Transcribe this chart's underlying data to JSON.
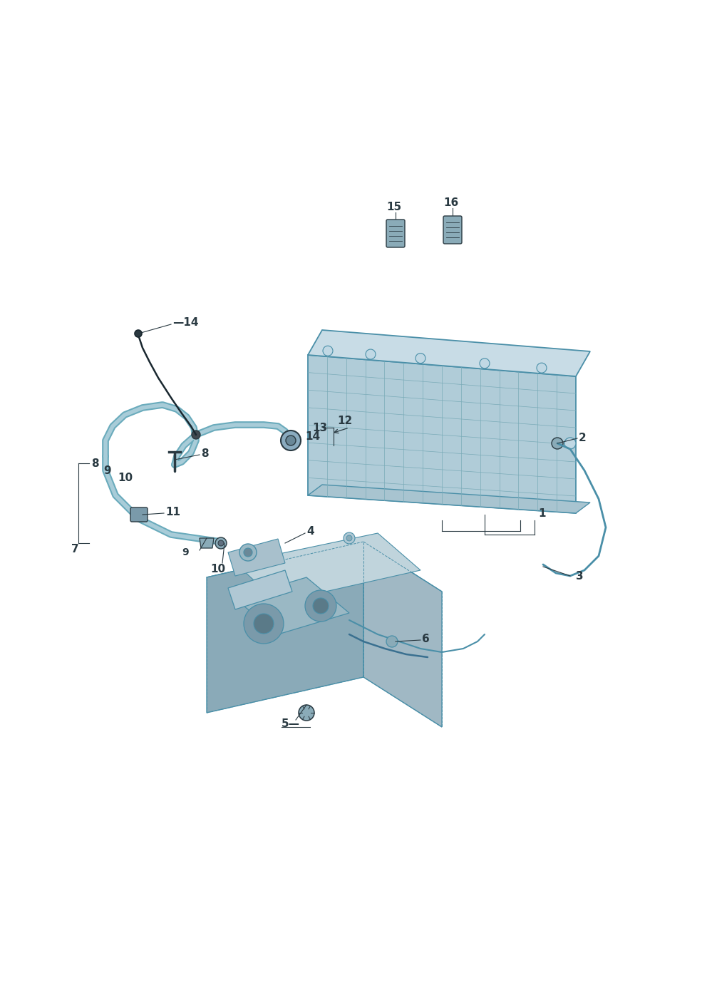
{
  "bg_color": "#ffffff",
  "line_color": "#4a8fa8",
  "dark_color": "#2a3a42",
  "label_color": "#2a3a42",
  "pipe_color": "#7ab0c0",
  "pipe_edge": "#4a8fa8",
  "acc_face": "#b0ccd8",
  "acc_top": "#c8dce6",
  "acc_side": "#8ab0c0",
  "unit_top": "#b8ccd6",
  "unit_face": "#a0b8c4",
  "unit_side": "#90a8b4",
  "small_part": "#7a9aaa",
  "figsize": [
    9.92,
    14.03
  ],
  "dpi": 100
}
